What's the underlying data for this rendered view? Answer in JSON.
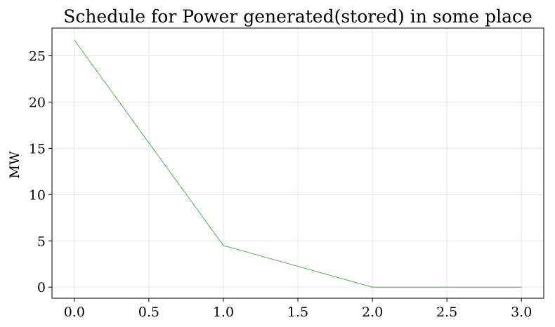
{
  "chart_data": {
    "type": "line",
    "title": "Schedule for Power generated(stored) in some place",
    "xlabel": "",
    "ylabel": "MW",
    "x": [
      0.0,
      1.0,
      2.0,
      3.0
    ],
    "series": [
      {
        "values": [
          26.7,
          4.5,
          0.0,
          0.0
        ],
        "color": "#2ca02c"
      }
    ],
    "xticks": [
      "0.0",
      "0.5",
      "1.0",
      "1.5",
      "2.0",
      "2.5",
      "3.0"
    ],
    "yticks": [
      "0",
      "5",
      "10",
      "15",
      "20",
      "25"
    ],
    "xlim": [
      -0.15,
      3.15
    ],
    "ylim": [
      -1.2,
      28.0
    ],
    "grid": true
  }
}
